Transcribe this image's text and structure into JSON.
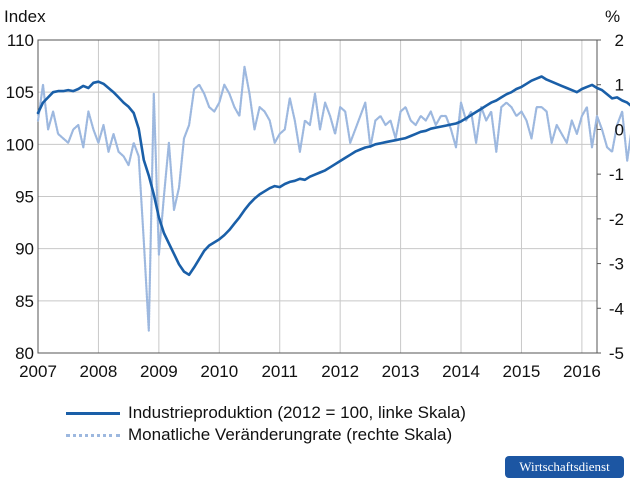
{
  "chart_data": {
    "type": "line",
    "left_axis_title": "Index",
    "right_axis_title": "%",
    "left_ylim": [
      80,
      110
    ],
    "left_yticks": [
      "110",
      "105",
      "100",
      "95",
      "90",
      "85",
      "80"
    ],
    "right_ylim": [
      -5,
      2
    ],
    "right_yticks": [
      "2",
      "1",
      "0",
      "-1",
      "-2",
      "-3",
      "-4",
      "-5"
    ],
    "xlim": [
      "2007-01",
      "2016-04"
    ],
    "xticks": [
      "2007",
      "2008",
      "2009",
      "2010",
      "2011",
      "2012",
      "2013",
      "2014",
      "2015",
      "2016"
    ],
    "grid": true,
    "legend_position": "bottom",
    "series": [
      {
        "name": "Industrieproduktion (2012 = 100, linke Skala)",
        "axis": "left",
        "color": "#1a5fa8",
        "style": "solid",
        "x_start": "2007-01",
        "x_step": "month",
        "values": [
          103.0,
          104.0,
          104.5,
          105.0,
          105.1,
          105.1,
          105.2,
          105.1,
          105.3,
          105.6,
          105.4,
          105.9,
          106.0,
          105.8,
          105.4,
          105.0,
          104.5,
          104.0,
          103.6,
          103.0,
          101.5,
          98.5,
          97.0,
          95.2,
          93.0,
          91.5,
          90.5,
          89.5,
          88.5,
          87.8,
          87.5,
          88.2,
          89.0,
          89.8,
          90.3,
          90.6,
          90.9,
          91.3,
          91.8,
          92.4,
          93.0,
          93.7,
          94.3,
          94.8,
          95.2,
          95.5,
          95.8,
          96.0,
          95.9,
          96.2,
          96.4,
          96.5,
          96.7,
          96.6,
          96.9,
          97.1,
          97.3,
          97.5,
          97.8,
          98.1,
          98.4,
          98.7,
          99.0,
          99.3,
          99.5,
          99.7,
          99.8,
          100.0,
          100.1,
          100.2,
          100.3,
          100.4,
          100.5,
          100.6,
          100.8,
          101.0,
          101.2,
          101.3,
          101.5,
          101.6,
          101.7,
          101.8,
          101.9,
          102.0,
          102.2,
          102.5,
          102.8,
          103.1,
          103.4,
          103.7,
          104.0,
          104.2,
          104.5,
          104.8,
          105.0,
          105.3,
          105.5,
          105.8,
          106.1,
          106.3,
          106.5,
          106.2,
          106.0,
          105.8,
          105.6,
          105.4,
          105.2,
          105.0,
          105.3,
          105.5,
          105.7,
          105.4,
          105.2,
          104.8,
          104.4,
          104.5,
          104.2,
          104.0,
          103.6,
          103.3
        ]
      },
      {
        "name": "Monatliche Veränderungrate (rechte Skala)",
        "axis": "right",
        "color": "#9db8df",
        "style": "dotted",
        "x_start": "2007-01",
        "x_step": "month",
        "values": [
          0.2,
          1.0,
          0.0,
          0.4,
          -0.1,
          -0.2,
          -0.3,
          0.0,
          0.1,
          -0.4,
          0.4,
          0.0,
          -0.3,
          0.1,
          -0.5,
          -0.1,
          -0.5,
          -0.6,
          -0.8,
          -0.3,
          -0.6,
          -2.5,
          -4.5,
          0.8,
          -2.8,
          -1.5,
          -0.3,
          -1.8,
          -1.3,
          -0.2,
          0.1,
          0.9,
          1.0,
          0.8,
          0.5,
          0.4,
          0.6,
          1.0,
          0.8,
          0.5,
          0.3,
          1.4,
          0.8,
          0.0,
          0.5,
          0.4,
          0.2,
          -0.3,
          -0.1,
          0.0,
          0.7,
          0.2,
          -0.5,
          0.2,
          0.1,
          0.8,
          0.0,
          0.6,
          0.3,
          -0.1,
          0.5,
          0.4,
          -0.3,
          0.0,
          0.3,
          0.6,
          -0.4,
          0.2,
          0.3,
          0.1,
          0.2,
          -0.2,
          0.4,
          0.5,
          0.2,
          0.1,
          0.3,
          0.2,
          0.4,
          0.1,
          0.3,
          0.3,
          0.0,
          -0.4,
          0.6,
          0.2,
          0.4,
          -0.3,
          0.5,
          0.2,
          0.4,
          -0.5,
          0.5,
          0.6,
          0.5,
          0.3,
          0.4,
          0.2,
          -0.2,
          0.5,
          0.5,
          0.4,
          -0.3,
          0.1,
          -0.1,
          -0.3,
          0.2,
          -0.1,
          0.3,
          0.5,
          -0.4,
          0.3,
          0.0,
          -0.4,
          -0.5,
          0.1,
          0.4,
          -0.7,
          0.1,
          0.6,
          -0.4,
          -0.5
        ]
      }
    ]
  },
  "logo_text": "Wirtschaftsdienst",
  "colors": {
    "grid": "#c8c8c8",
    "frame": "#555555",
    "logo_bg": "#1c56a3"
  }
}
